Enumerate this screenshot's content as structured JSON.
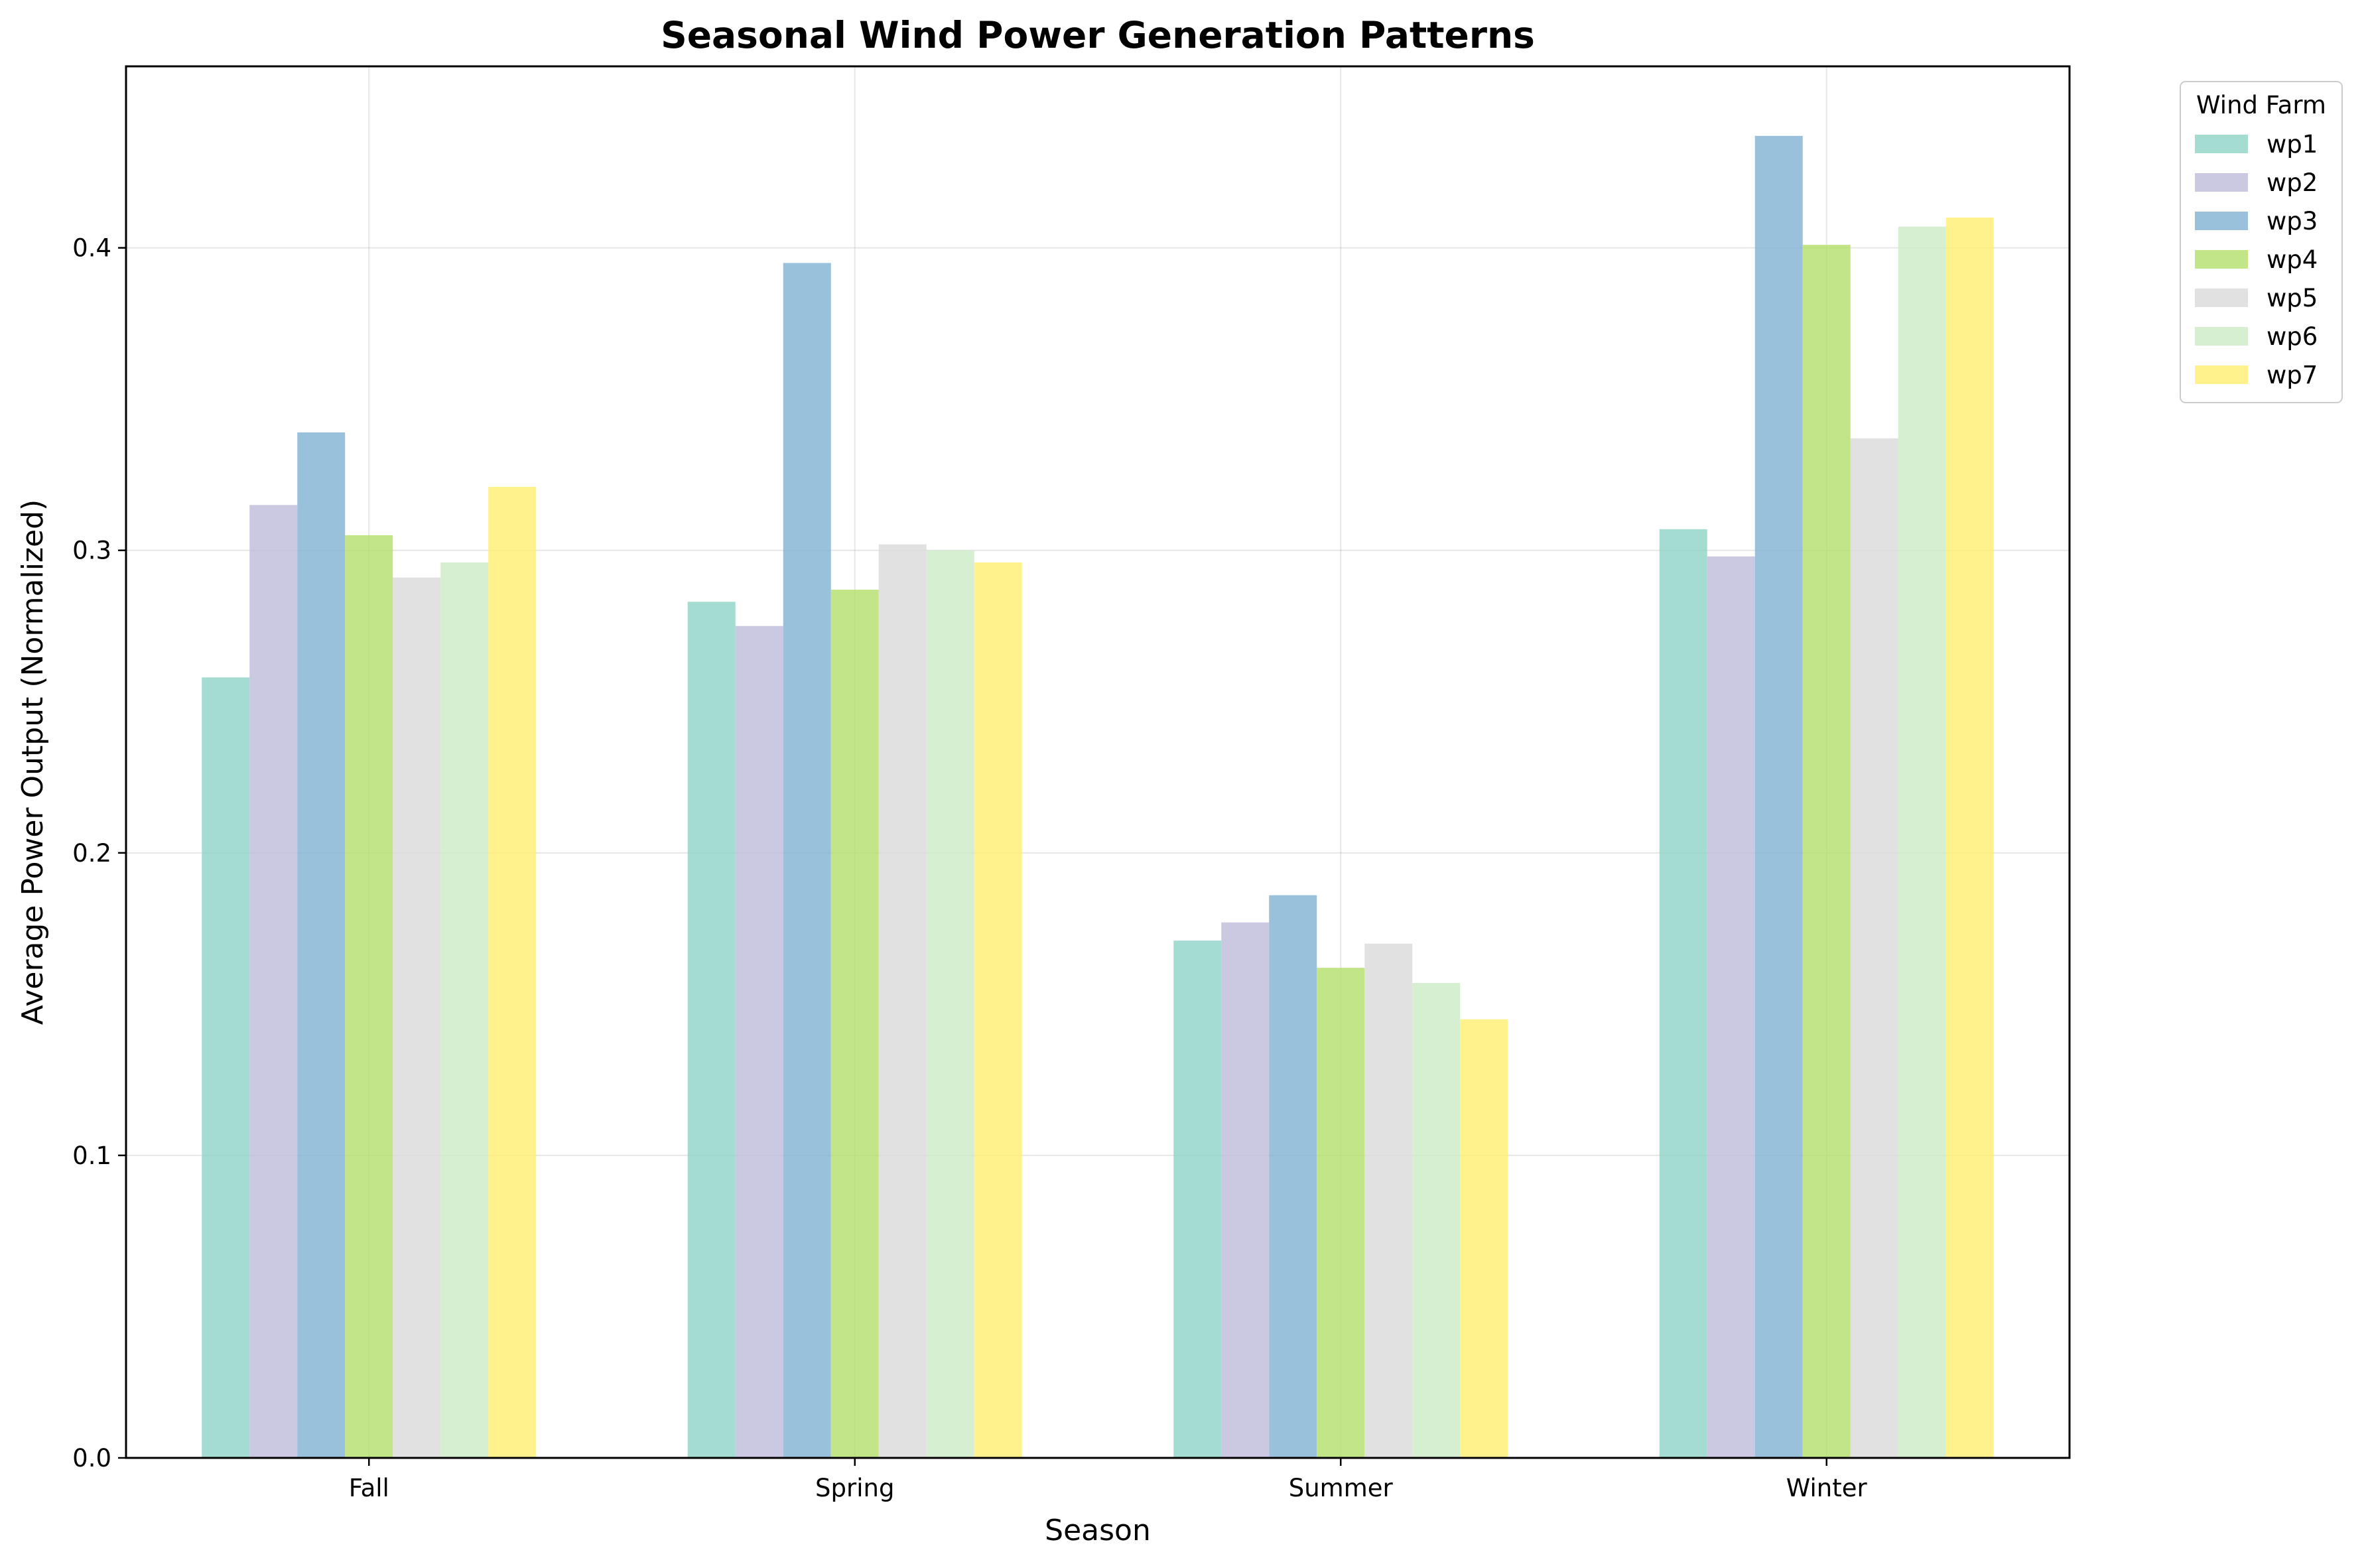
{
  "chart_data": {
    "type": "bar",
    "title": "Seasonal Wind Power Generation Patterns",
    "xlabel": "Season",
    "ylabel": "Average Power Output (Normalized)",
    "categories": [
      "Fall",
      "Spring",
      "Summer",
      "Winter"
    ],
    "ylim": [
      0,
      0.46
    ],
    "yticks": [
      "0.0",
      "0.1",
      "0.2",
      "0.3",
      "0.4"
    ],
    "grid": true,
    "legend": {
      "title": "Wind Farm",
      "placement": "outside-top-right"
    },
    "series": [
      {
        "name": "wp1",
        "color": "#8dd3c7",
        "values": [
          0.258,
          0.283,
          0.171,
          0.307
        ]
      },
      {
        "name": "wp2",
        "color": "#bebada",
        "values": [
          0.315,
          0.275,
          0.177,
          0.298
        ]
      },
      {
        "name": "wp3",
        "color": "#80b1d3",
        "values": [
          0.339,
          0.395,
          0.186,
          0.437
        ]
      },
      {
        "name": "wp4",
        "color": "#b3de69",
        "values": [
          0.305,
          0.287,
          0.162,
          0.401
        ]
      },
      {
        "name": "wp5",
        "color": "#d9d9d9",
        "values": [
          0.291,
          0.302,
          0.17,
          0.337
        ]
      },
      {
        "name": "wp6",
        "color": "#ccebc5",
        "values": [
          0.296,
          0.3,
          0.157,
          0.407
        ]
      },
      {
        "name": "wp7",
        "color": "#ffed6f",
        "values": [
          0.321,
          0.296,
          0.145,
          0.41
        ]
      }
    ]
  }
}
